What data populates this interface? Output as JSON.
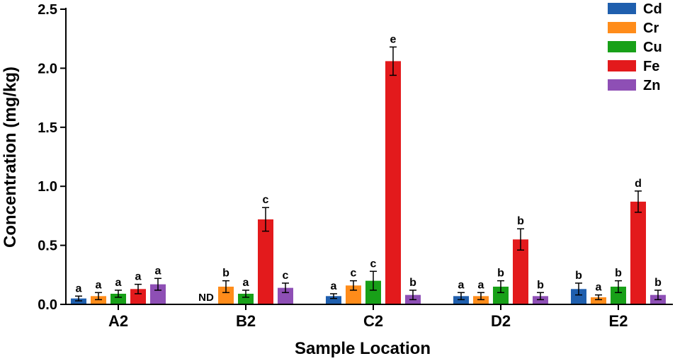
{
  "chart_data": {
    "type": "bar",
    "title": "",
    "xlabel": "Sample Location",
    "ylabel": "Concentration (mg/kg)",
    "ylim": [
      0,
      2.5
    ],
    "yticks": [
      "0.0",
      "0.5",
      "1.0",
      "1.5",
      "2.0",
      "2.5"
    ],
    "categories": [
      "A2",
      "B2",
      "C2",
      "D2",
      "E2"
    ],
    "legend_position": "top-right",
    "grid": false,
    "series": [
      {
        "name": "Cd",
        "color": "#1f5fae",
        "values": [
          0.05,
          null,
          0.07,
          0.07,
          0.13
        ],
        "errors": [
          0.02,
          null,
          0.02,
          0.03,
          0.05
        ],
        "labels": [
          "a",
          "ND",
          "a",
          "a",
          "b"
        ]
      },
      {
        "name": "Cr",
        "color": "#ff8c1a",
        "values": [
          0.07,
          0.15,
          0.16,
          0.07,
          0.06
        ],
        "errors": [
          0.03,
          0.05,
          0.04,
          0.03,
          0.02
        ],
        "labels": [
          "a",
          "b",
          "c",
          "a",
          "a"
        ]
      },
      {
        "name": "Cu",
        "color": "#18a018",
        "values": [
          0.09,
          0.09,
          0.2,
          0.15,
          0.15
        ],
        "errors": [
          0.03,
          0.03,
          0.08,
          0.05,
          0.05
        ],
        "labels": [
          "a",
          "a",
          "c",
          "b",
          "b"
        ]
      },
      {
        "name": "Fe",
        "color": "#e31a1c",
        "values": [
          0.13,
          0.72,
          2.06,
          0.55,
          0.87
        ],
        "errors": [
          0.04,
          0.1,
          0.12,
          0.09,
          0.09
        ],
        "labels": [
          "a",
          "c",
          "e",
          "b",
          "d"
        ]
      },
      {
        "name": "Zn",
        "color": "#8e4fb5",
        "values": [
          0.17,
          0.14,
          0.08,
          0.07,
          0.08
        ],
        "errors": [
          0.05,
          0.04,
          0.04,
          0.03,
          0.04
        ],
        "labels": [
          "a",
          "c",
          "b",
          "b",
          "b"
        ]
      }
    ]
  }
}
